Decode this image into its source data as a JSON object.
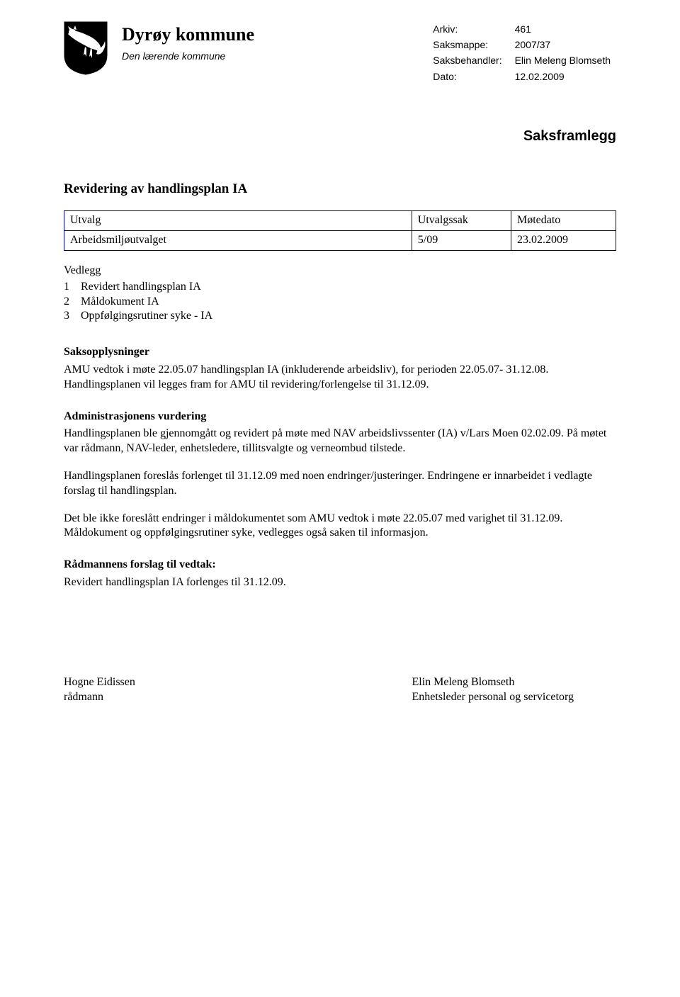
{
  "header": {
    "title": "Dyrøy kommune",
    "subtitle": "Den lærende kommune",
    "shield": {
      "fill": "#000000",
      "fox_fill": "#ffffff"
    }
  },
  "meta": {
    "rows": [
      {
        "label": "Arkiv:",
        "value": "461"
      },
      {
        "label": "Saksmappe:",
        "value": "2007/37"
      },
      {
        "label": "Saksbehandler:",
        "value": "Elin Meleng Blomseth"
      },
      {
        "label": "Dato:",
        "value": "12.02.2009"
      }
    ]
  },
  "doc_type": "Saksframlegg",
  "case_title": "Revidering av handlingsplan IA",
  "utvalg_table": {
    "headers": {
      "utvalg": "Utvalg",
      "utvalgssak": "Utvalgssak",
      "motedato": "Møtedato"
    },
    "rows": [
      {
        "utvalg": "Arbeidsmiljøutvalget",
        "utvalgssak": "5/09",
        "motedato": "23.02.2009"
      }
    ]
  },
  "vedlegg": {
    "heading": "Vedlegg",
    "items": [
      {
        "num": "1",
        "text": "Revidert handlingsplan IA"
      },
      {
        "num": "2",
        "text": "Måldokument IA"
      },
      {
        "num": "3",
        "text": "Oppfølgingsrutiner syke - IA"
      }
    ]
  },
  "saksopplysninger": {
    "heading": "Saksopplysninger",
    "para": "AMU vedtok i møte 22.05.07 handlingsplan IA (inkluderende arbeidsliv), for perioden 22.05.07- 31.12.08. Handlingsplanen vil legges fram for AMU til revidering/forlengelse til 31.12.09."
  },
  "admin_vurdering": {
    "heading": "Administrasjonens vurdering",
    "paras": [
      "Handlingsplanen ble gjennomgått og revidert på møte med NAV arbeidslivssenter (IA) v/Lars Moen 02.02.09. På møtet var rådmann, NAV-leder, enhetsledere, tillitsvalgte og verneombud tilstede.",
      "Handlingsplanen foreslås forlenget til 31.12.09 med noen endringer/justeringer. Endringene er innarbeidet i vedlagte forslag til handlingsplan.",
      "Det ble ikke foreslått endringer i måldokumentet som AMU vedtok i møte 22.05.07 med varighet til 31.12.09. Måldokument og oppfølgingsrutiner syke, vedlegges også saken til informasjon."
    ]
  },
  "radmannens_forslag": {
    "heading": "Rådmannens forslag til vedtak:",
    "text": "Revidert handlingsplan IA forlenges til 31.12.09."
  },
  "signatures": {
    "left": {
      "name": "Hogne Eidissen",
      "title": "rådmann"
    },
    "right": {
      "name": "Elin Meleng Blomseth",
      "title": "Enhetsleder personal og servicetorg"
    }
  },
  "colors": {
    "text": "#000000",
    "background": "#ffffff",
    "table_border": "#000080"
  }
}
